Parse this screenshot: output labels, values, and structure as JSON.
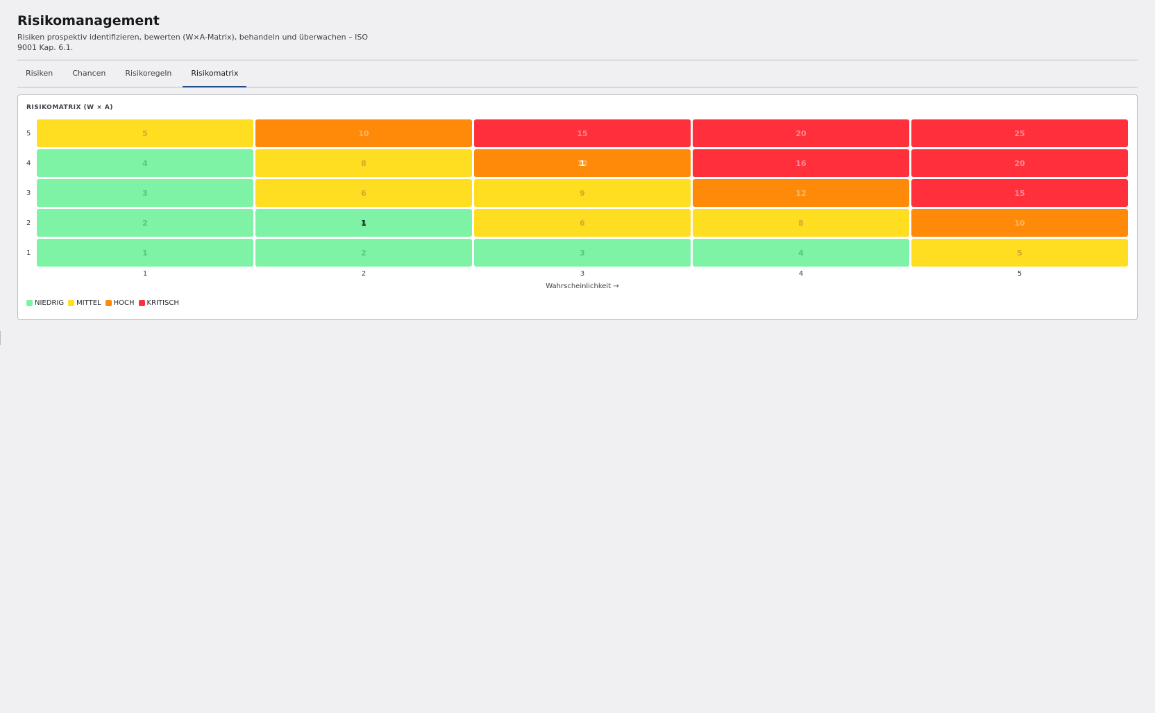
{
  "header": {
    "title": "Risikomanagement",
    "subtitle": "Risiken prospektiv identifizieren, bewerten (W×A-Matrix), behandeln und überwachen – ISO 9001 Kap. 6.1."
  },
  "tabs": [
    {
      "label": "Risiken",
      "active": false
    },
    {
      "label": "Chancen",
      "active": false
    },
    {
      "label": "Risikoregeln",
      "active": false
    },
    {
      "label": "Risikomatrix",
      "active": true
    }
  ],
  "matrix": {
    "title": "RISIKOMATRIX (W × A)",
    "x_axis_title": "Wahrscheinlichkeit →",
    "x_ticks": [
      "1",
      "2",
      "3",
      "4",
      "5"
    ],
    "y_ticks": [
      "5",
      "4",
      "3",
      "2",
      "1"
    ],
    "rows": [
      [
        {
          "score": "5",
          "level": "med"
        },
        {
          "score": "10",
          "level": "high"
        },
        {
          "score": "15",
          "level": "crit"
        },
        {
          "score": "20",
          "level": "crit"
        },
        {
          "score": "25",
          "level": "crit"
        }
      ],
      [
        {
          "score": "4",
          "level": "low"
        },
        {
          "score": "8",
          "level": "med"
        },
        {
          "score": "12",
          "level": "high",
          "count": "1"
        },
        {
          "score": "16",
          "level": "crit"
        },
        {
          "score": "20",
          "level": "crit"
        }
      ],
      [
        {
          "score": "3",
          "level": "low"
        },
        {
          "score": "6",
          "level": "med"
        },
        {
          "score": "9",
          "level": "med"
        },
        {
          "score": "12",
          "level": "high"
        },
        {
          "score": "15",
          "level": "crit"
        }
      ],
      [
        {
          "score": "2",
          "level": "low"
        },
        {
          "score": "4",
          "level": "low",
          "count": "1"
        },
        {
          "score": "6",
          "level": "med"
        },
        {
          "score": "8",
          "level": "med"
        },
        {
          "score": "10",
          "level": "high"
        }
      ],
      [
        {
          "score": "1",
          "level": "low"
        },
        {
          "score": "2",
          "level": "low"
        },
        {
          "score": "3",
          "level": "low"
        },
        {
          "score": "4",
          "level": "low"
        },
        {
          "score": "5",
          "level": "med"
        }
      ]
    ],
    "legend": [
      {
        "label": "NIEDRIG",
        "color": "#7ef2a5"
      },
      {
        "label": "MITTEL",
        "color": "#ffde21"
      },
      {
        "label": "HOCH",
        "color": "#ff8a0a"
      },
      {
        "label": "KRITISCH",
        "color": "#ff2f3b"
      }
    ]
  }
}
